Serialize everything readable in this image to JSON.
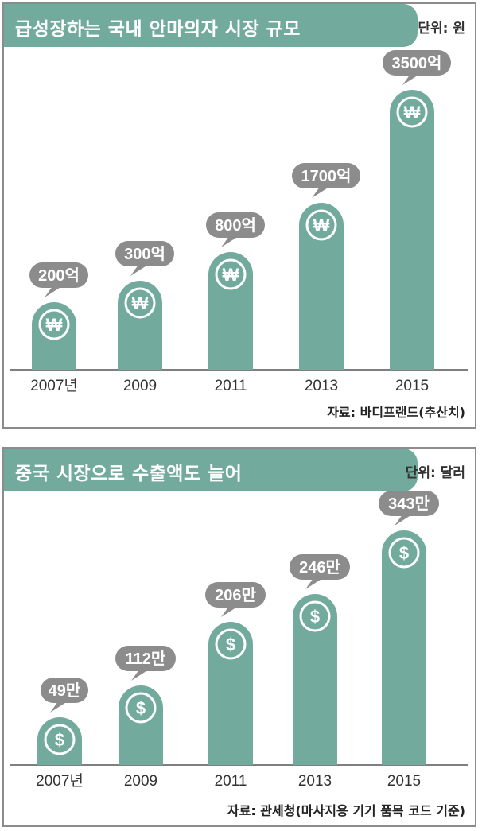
{
  "colors": {
    "bar": "#72ab9e",
    "bubble": "#8c8c8c",
    "header": "#72ab9e",
    "axis": "#555555"
  },
  "chart_data": [
    {
      "type": "bar",
      "title": "급성장하는 국내 안마의자 시장 규모",
      "unit": "단위: 원",
      "source": "자료: 바디프랜드(추산치)",
      "categories": [
        "2007년",
        "2009",
        "2011",
        "2013",
        "2015"
      ],
      "values": [
        200,
        300,
        800,
        1700,
        3500
      ],
      "value_labels": [
        "200억",
        "300억",
        "800억",
        "1700억",
        "3500억"
      ],
      "icon": "won-icon",
      "icon_glyph": "₩"
    },
    {
      "type": "bar",
      "title": "중국 시장으로 수출액도 늘어",
      "unit": "단위: 달러",
      "source": "자료: 관세청(마사지용 기기 품목 코드 기준)",
      "categories": [
        "2007년",
        "2009",
        "2011",
        "2013",
        "2015"
      ],
      "values": [
        49,
        112,
        206,
        246,
        343
      ],
      "value_labels": [
        "49만",
        "112만",
        "206만",
        "246만",
        "343만"
      ],
      "icon": "dollar-icon",
      "icon_glyph": "$"
    }
  ]
}
